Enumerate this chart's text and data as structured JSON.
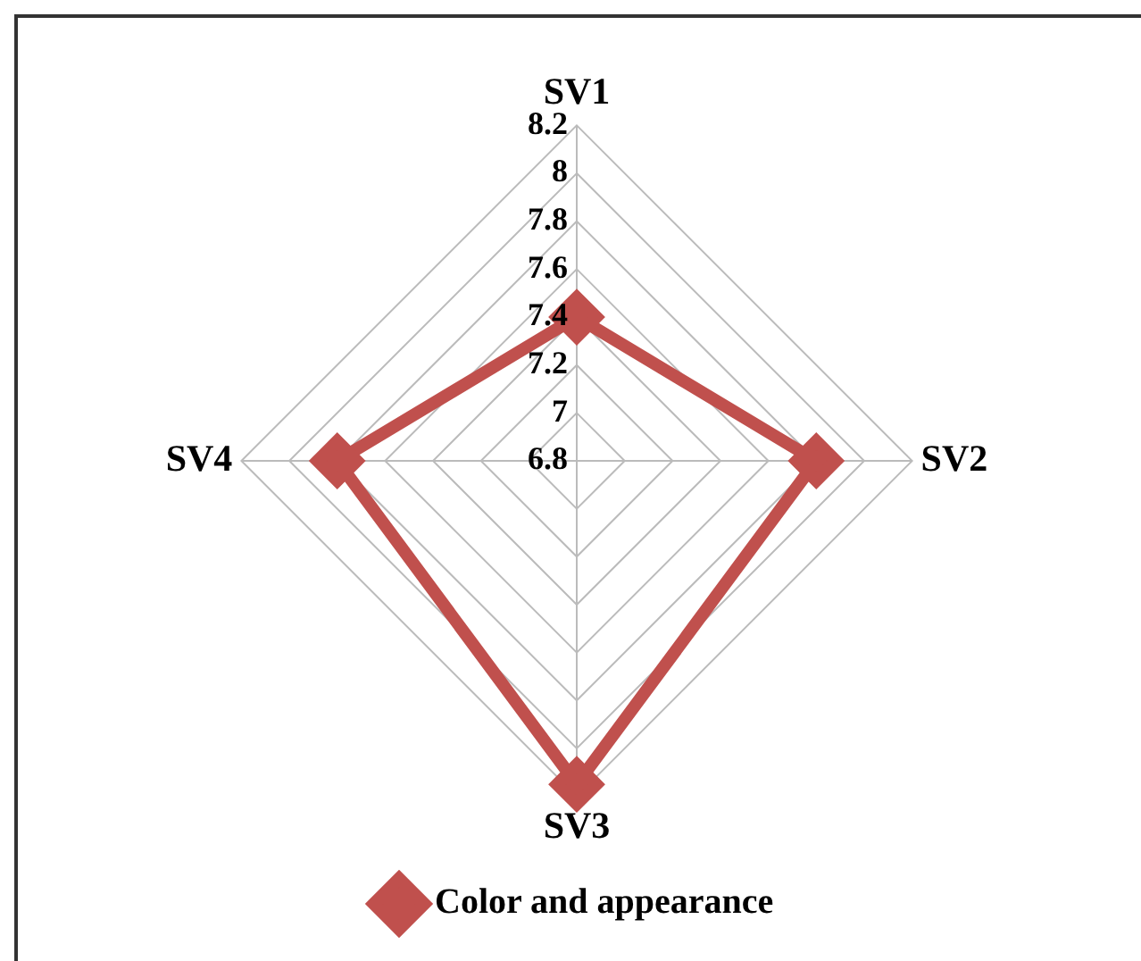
{
  "chart_data": {
    "type": "radar",
    "categories": [
      "SV1",
      "SV2",
      "SV3",
      "SV4"
    ],
    "series": [
      {
        "name": "Color and appearance",
        "color": "#c0504d",
        "values": [
          7.4,
          7.8,
          8.15,
          7.8
        ]
      }
    ],
    "ylim": [
      6.8,
      8.2
    ],
    "yticks": [
      6.8,
      7,
      7.2,
      7.4,
      7.6,
      7.8,
      8,
      8.2
    ],
    "grid": true,
    "legend": "bottom",
    "marker": "diamond"
  }
}
